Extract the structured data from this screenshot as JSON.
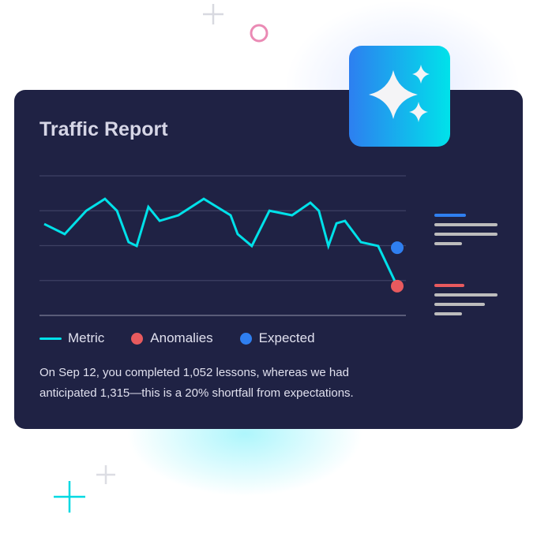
{
  "card": {
    "title": "Traffic Report",
    "description": "On Sep 12, you completed 1,052 lessons, whereas we had anticipated 1,315—this is a 20% shortfall from expectations."
  },
  "icon": "sparkles-icon",
  "colors": {
    "metric": "#00e1e9",
    "anomaly": "#e85a5e",
    "expected": "#2f7ff0",
    "card": "#1f2244"
  },
  "chart_data": {
    "type": "line",
    "title": "",
    "xlabel": "",
    "ylabel": "",
    "xlim": [
      0,
      100
    ],
    "ylim": [
      0,
      4
    ],
    "grid": true,
    "legend_placement": "bottom",
    "series": [
      {
        "name": "Metric",
        "x": [
          0,
          5.8,
          11.9,
          17.2,
          20.6,
          23.9,
          26.2,
          29.5,
          32.7,
          38,
          45.2,
          52.8,
          54.8,
          58.8,
          63.8,
          70.2,
          75.4,
          77.8,
          80.5,
          82.8,
          85.2,
          89.7,
          94.6,
          100
        ],
        "y": [
          2.62,
          2.33,
          3.0,
          3.34,
          3.0,
          2.1,
          1.99,
          3.11,
          2.71,
          2.87,
          3.34,
          2.87,
          2.33,
          1.99,
          3.0,
          2.87,
          3.23,
          3.0,
          1.99,
          2.64,
          2.71,
          2.1,
          1.99,
          0.84
        ]
      },
      {
        "name": "Anomalies",
        "x": [
          100
        ],
        "y": [
          0.84
        ]
      },
      {
        "name": "Expected",
        "x": [
          100
        ],
        "y": [
          1.94
        ]
      }
    ]
  },
  "legend": [
    {
      "label": "Metric"
    },
    {
      "label": "Anomalies"
    },
    {
      "label": "Expected"
    }
  ]
}
